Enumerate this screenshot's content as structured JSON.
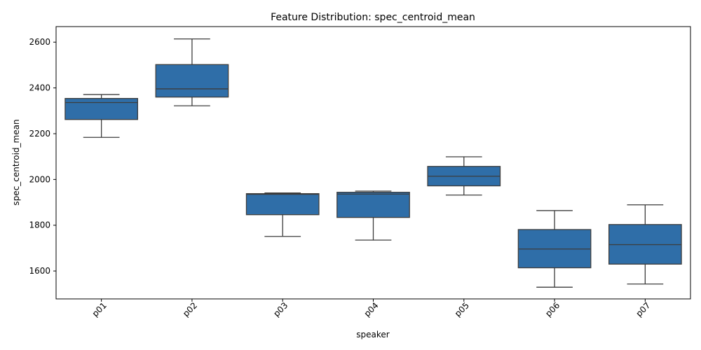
{
  "chart_data": {
    "type": "box",
    "title": "Feature Distribution: spec_centroid_mean",
    "xlabel": "speaker",
    "ylabel": "spec_centroid_mean",
    "categories": [
      "p01",
      "p02",
      "p03",
      "p04",
      "p05",
      "p06",
      "p07"
    ],
    "ylim": [
      1478,
      2668
    ],
    "yticks": [
      1600,
      1800,
      2000,
      2200,
      2400,
      2600
    ],
    "boxes": [
      {
        "category": "p01",
        "whisker_low": 2184,
        "q1": 2262,
        "median": 2336,
        "q3": 2354,
        "whisker_high": 2371
      },
      {
        "category": "p02",
        "whisker_low": 2322,
        "q1": 2360,
        "median": 2396,
        "q3": 2502,
        "whisker_high": 2614
      },
      {
        "category": "p03",
        "whisker_low": 1751,
        "q1": 1846,
        "median": 1935,
        "q3": 1938,
        "whisker_high": 1941
      },
      {
        "category": "p04",
        "whisker_low": 1735,
        "q1": 1834,
        "median": 1936,
        "q3": 1944,
        "whisker_high": 1949
      },
      {
        "category": "p05",
        "whisker_low": 1932,
        "q1": 1972,
        "median": 2014,
        "q3": 2057,
        "whisker_high": 2099
      },
      {
        "category": "p06",
        "whisker_low": 1529,
        "q1": 1614,
        "median": 1696,
        "q3": 1781,
        "whisker_high": 1864
      },
      {
        "category": "p07",
        "whisker_low": 1543,
        "q1": 1630,
        "median": 1715,
        "q3": 1803,
        "whisker_high": 1889
      }
    ],
    "box_color": "#2f6ea8",
    "line_color": "#3d3d3d",
    "grid": false,
    "legend": "none"
  }
}
